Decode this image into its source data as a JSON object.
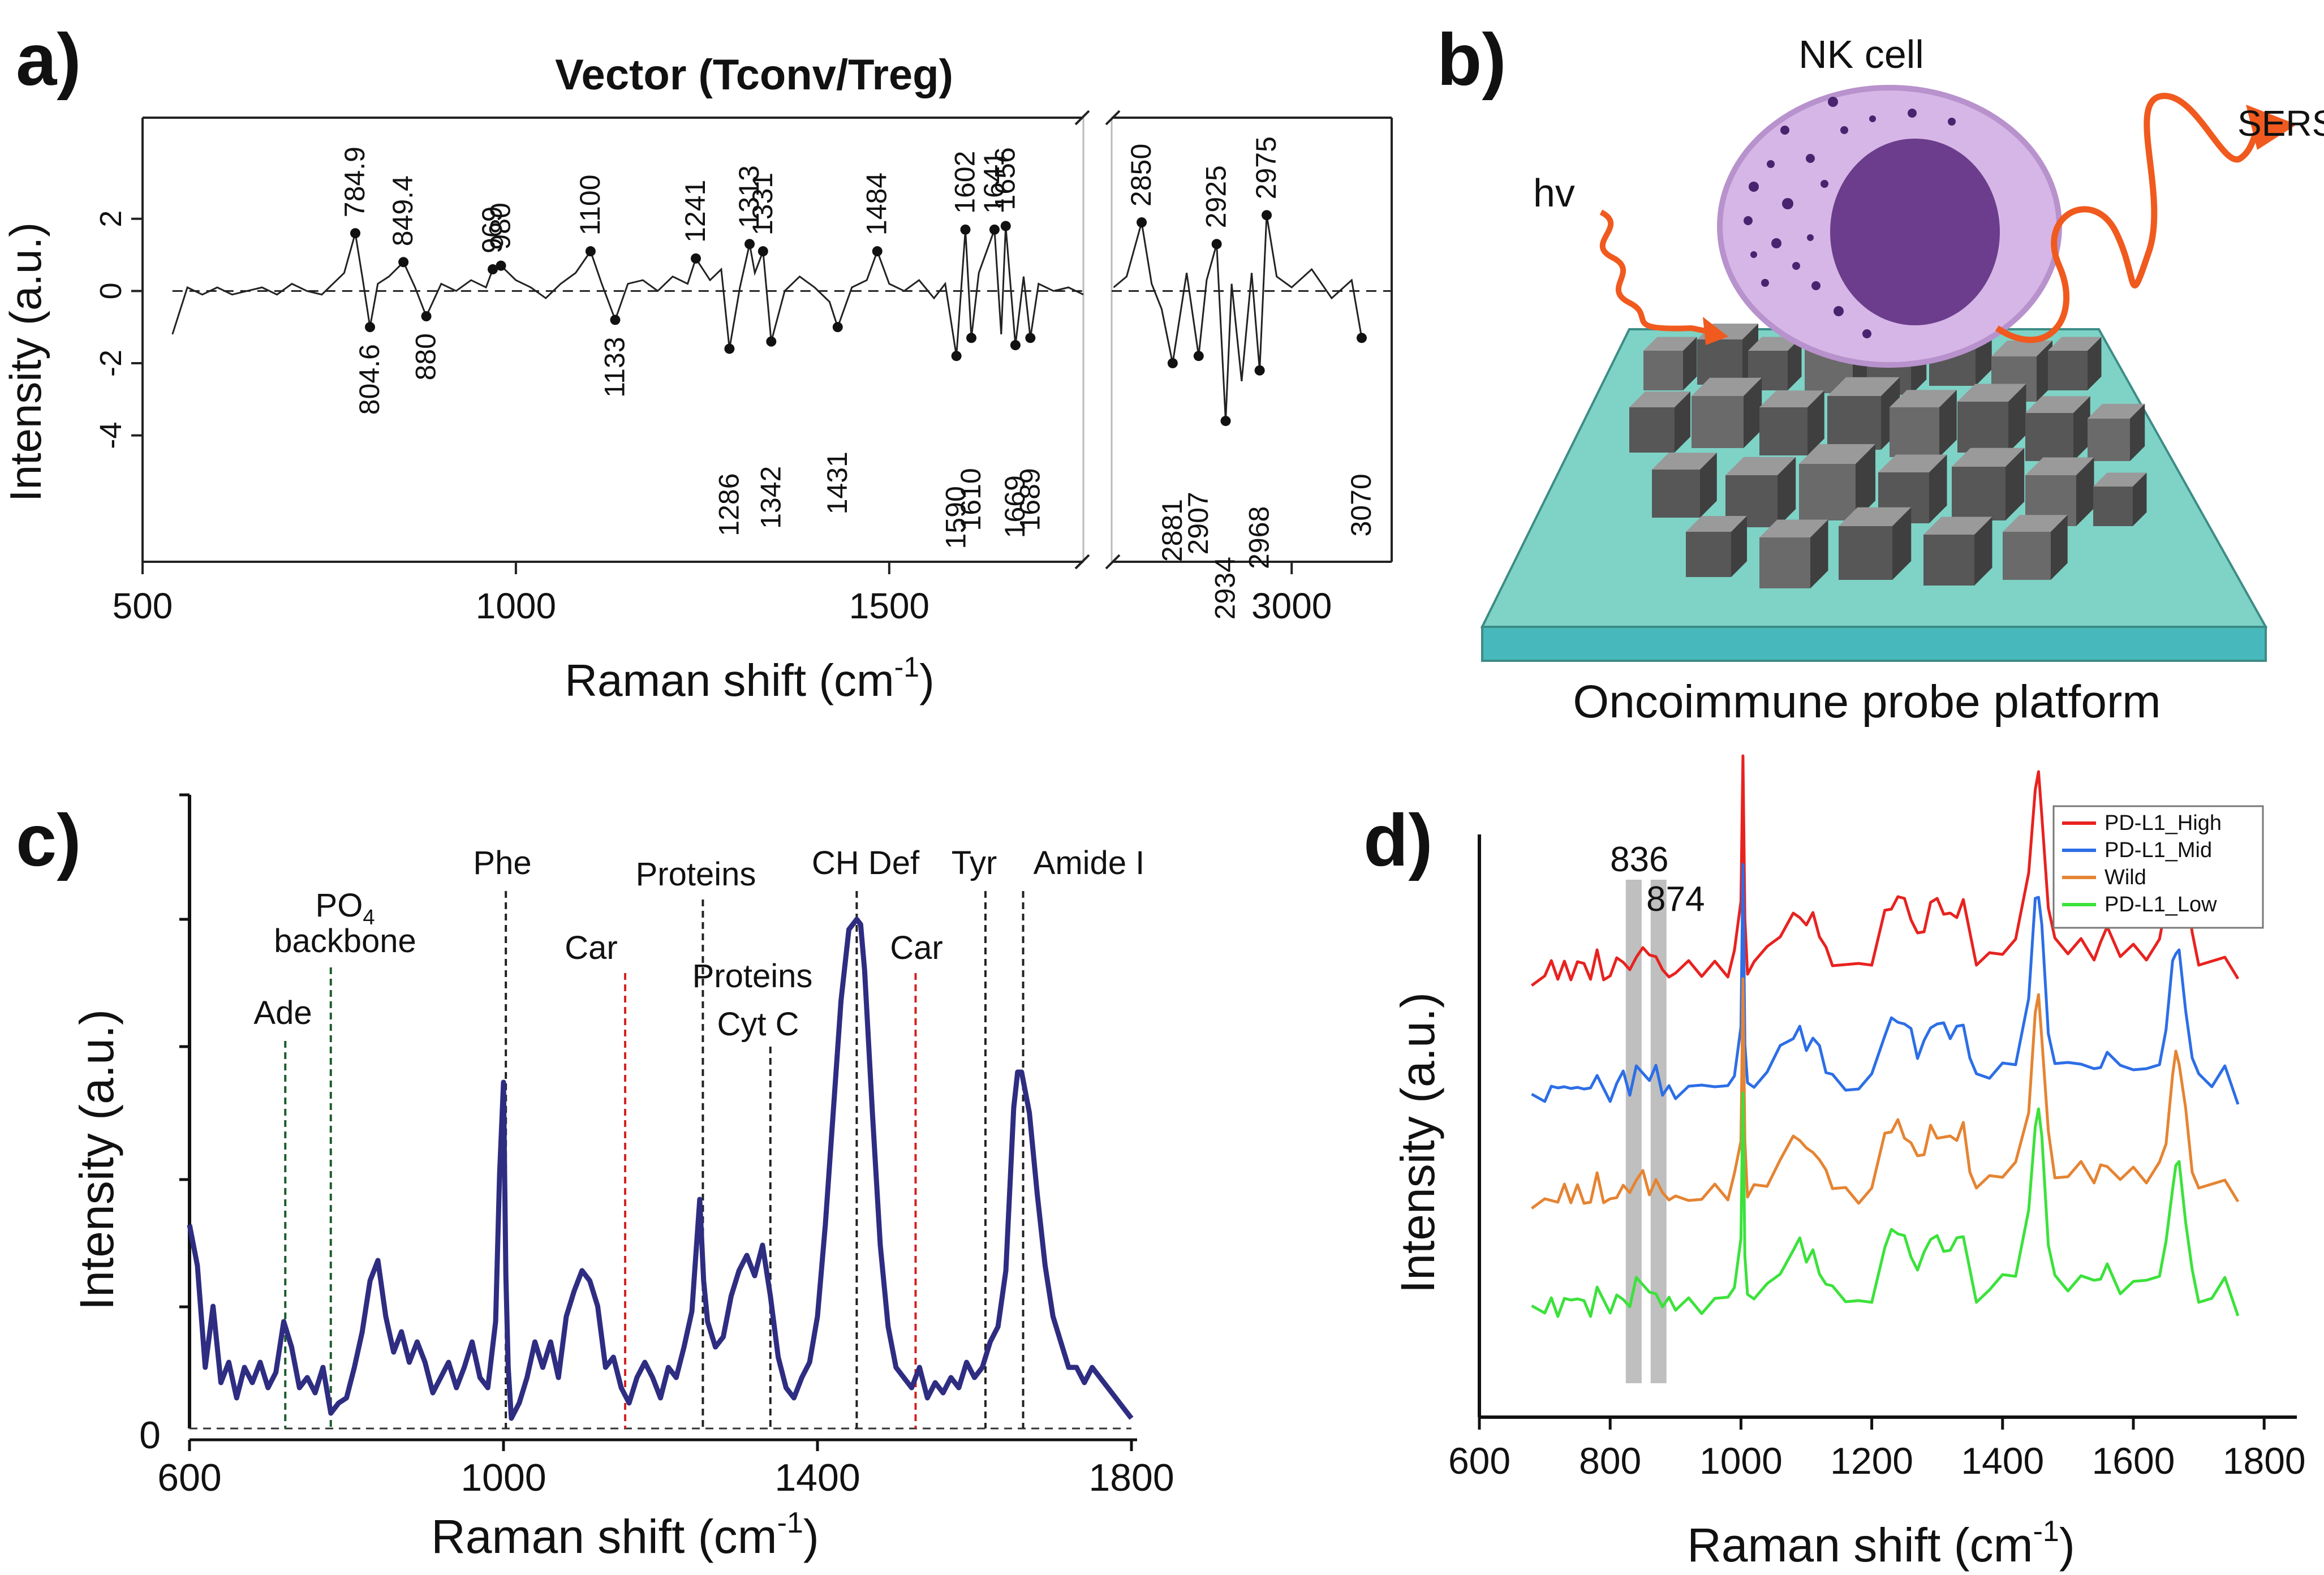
{
  "panel_labels": {
    "a": "a)",
    "b": "b)",
    "c": "c)",
    "d": "d)"
  },
  "chart_data": [
    {
      "id": "a",
      "type": "line",
      "title": "Vector (Tconv/Treg)",
      "xlabel_main": "Raman shift (cm",
      "xlabel_sup": "-1",
      "xlabel_end": ")",
      "ylabel": "Intensity (a.u.)",
      "x_broken_axis": true,
      "segments": [
        {
          "xlim": [
            500,
            1760
          ],
          "xticks": [
            500,
            1000,
            1500
          ]
        },
        {
          "xlim": [
            2820,
            3100
          ],
          "xticks": [
            3000
          ]
        }
      ],
      "ylim": [
        -7.5,
        4.8
      ],
      "yticks": [
        2,
        0,
        -2,
        -4
      ],
      "zero_line": "dashed",
      "series": [
        {
          "name": "Vector (Tconv/Treg)",
          "x": [
            540,
            560,
            580,
            600,
            620,
            640,
            660,
            680,
            700,
            720,
            740,
            760,
            770,
            784.9,
            795,
            804.6,
            815,
            830,
            849.4,
            865,
            880,
            900,
            920,
            940,
            960,
            969,
            980,
            1000,
            1020,
            1040,
            1060,
            1080,
            1100,
            1115,
            1133,
            1150,
            1170,
            1190,
            1210,
            1230,
            1241,
            1260,
            1275,
            1286,
            1300,
            1313,
            1320,
            1331,
            1342,
            1360,
            1380,
            1400,
            1420,
            1431,
            1450,
            1470,
            1484,
            1500,
            1520,
            1540,
            1560,
            1575,
            1590,
            1602,
            1610,
            1620,
            1641,
            1650,
            1656,
            1669,
            1680,
            1689,
            1700,
            1720,
            1740,
            1760
          ],
          "y": [
            -1.2,
            0.1,
            -0.1,
            0.1,
            -0.1,
            0.0,
            0.1,
            -0.1,
            0.2,
            0.0,
            -0.1,
            0.3,
            0.5,
            1.6,
            0.3,
            -1.0,
            0.2,
            0.4,
            0.8,
            0.1,
            -0.7,
            0.2,
            0.0,
            0.3,
            0.1,
            0.6,
            0.7,
            0.3,
            0.1,
            -0.2,
            0.2,
            0.5,
            1.1,
            0.2,
            -0.8,
            0.2,
            0.3,
            0.0,
            0.4,
            0.2,
            0.9,
            0.3,
            0.6,
            -1.6,
            0.1,
            1.3,
            0.5,
            1.1,
            -1.4,
            0.0,
            0.4,
            0.1,
            -0.3,
            -1.0,
            0.1,
            0.3,
            1.1,
            0.2,
            0.0,
            0.3,
            -0.2,
            0.2,
            -1.8,
            1.7,
            -1.3,
            0.5,
            1.7,
            -1.2,
            1.8,
            -1.5,
            0.4,
            -1.3,
            0.2,
            0.0,
            0.1,
            -0.1
          ],
          "x2": [
            2822,
            2835,
            2850,
            2860,
            2870,
            2881,
            2895,
            2907,
            2915,
            2925,
            2934,
            2940,
            2950,
            2960,
            2968,
            2975,
            2985,
            3000,
            3020,
            3040,
            3060,
            3070
          ],
          "y2": [
            0.1,
            0.4,
            1.9,
            0.2,
            -0.5,
            -2.0,
            0.5,
            -1.8,
            0.3,
            1.3,
            -3.6,
            0.2,
            -2.5,
            0.5,
            -2.2,
            2.1,
            0.4,
            0.1,
            0.6,
            -0.2,
            0.3,
            -1.3
          ]
        }
      ],
      "peak_labels_above": [
        "784.9",
        "849.4",
        "969",
        "980",
        "1100",
        "1241",
        "1313",
        "1331",
        "1484",
        "1602",
        "1641",
        "1656",
        "2850",
        "2925",
        "2975"
      ],
      "peak_labels_below": [
        "804.6",
        "880",
        "1133",
        "1286",
        "1342",
        "1431",
        "1590",
        "1610",
        "1669",
        "1689",
        "2881",
        "2907",
        "2934",
        "2968",
        "3070"
      ]
    },
    {
      "id": "c",
      "type": "line",
      "xlabel_main": "Raman shift (cm",
      "xlabel_sup": "-1",
      "xlabel_end": ")",
      "ylabel": "Intensity (a.u.)",
      "xlim": [
        600,
        1800
      ],
      "xticks": [
        600,
        1000,
        1400,
        1800
      ],
      "ylim": [
        0,
        10
      ],
      "y_zero_label": "0",
      "series": [
        {
          "name": "spectrum",
          "color": "#2e2d82",
          "x": [
            600,
            610,
            620,
            630,
            640,
            650,
            660,
            670,
            680,
            690,
            700,
            710,
            720,
            730,
            740,
            750,
            760,
            770,
            780,
            790,
            800,
            810,
            820,
            830,
            840,
            850,
            860,
            870,
            880,
            890,
            900,
            910,
            920,
            930,
            940,
            950,
            960,
            970,
            980,
            990,
            995,
            1000,
            1003,
            1006,
            1010,
            1020,
            1030,
            1040,
            1050,
            1060,
            1070,
            1080,
            1090,
            1100,
            1110,
            1120,
            1130,
            1140,
            1150,
            1160,
            1170,
            1180,
            1190,
            1200,
            1210,
            1220,
            1230,
            1240,
            1250,
            1255,
            1260,
            1270,
            1280,
            1290,
            1300,
            1310,
            1320,
            1330,
            1340,
            1350,
            1360,
            1370,
            1380,
            1390,
            1400,
            1410,
            1420,
            1430,
            1440,
            1450,
            1455,
            1460,
            1470,
            1480,
            1490,
            1500,
            1510,
            1520,
            1530,
            1540,
            1550,
            1560,
            1570,
            1580,
            1590,
            1600,
            1610,
            1620,
            1630,
            1640,
            1650,
            1655,
            1660,
            1670,
            1680,
            1690,
            1700,
            1710,
            1720,
            1730,
            1740,
            1750,
            1760,
            1770,
            1780,
            1790,
            1800
          ],
          "y": [
            4.0,
            3.2,
            1.2,
            2.4,
            0.9,
            1.3,
            0.6,
            1.2,
            0.9,
            1.3,
            0.8,
            1.1,
            2.1,
            1.6,
            0.8,
            1.0,
            0.7,
            1.2,
            0.3,
            0.5,
            0.6,
            1.2,
            1.9,
            2.9,
            3.3,
            2.2,
            1.5,
            1.9,
            1.3,
            1.7,
            1.3,
            0.7,
            1.0,
            1.3,
            0.8,
            1.2,
            1.7,
            1.0,
            0.8,
            2.1,
            5.0,
            6.8,
            3.0,
            1.2,
            0.2,
            0.5,
            1.0,
            1.7,
            1.2,
            1.7,
            1.0,
            2.2,
            2.7,
            3.1,
            2.9,
            2.4,
            1.2,
            1.4,
            0.8,
            0.5,
            1.0,
            1.3,
            1.0,
            0.6,
            1.2,
            1.0,
            1.6,
            2.3,
            4.5,
            2.9,
            2.1,
            1.6,
            1.8,
            2.6,
            3.1,
            3.4,
            3.0,
            3.6,
            2.6,
            1.4,
            0.8,
            0.6,
            1.0,
            1.3,
            2.2,
            4.0,
            6.2,
            8.4,
            9.8,
            10.0,
            9.9,
            9.0,
            6.2,
            3.6,
            2.0,
            1.2,
            1.0,
            0.8,
            1.2,
            0.6,
            0.9,
            0.7,
            1.0,
            0.8,
            1.3,
            1.0,
            1.2,
            1.7,
            2.0,
            3.1,
            6.3,
            7.0,
            7.0,
            6.2,
            4.6,
            3.2,
            2.2,
            1.7,
            1.2,
            1.2,
            0.9,
            1.2,
            1.0,
            0.8,
            0.6,
            0.4,
            0.2
          ]
        }
      ],
      "reference_lines": [
        {
          "x": 722,
          "color": "#1d5c2c",
          "labels": [
            "Ade"
          ]
        },
        {
          "x": 780,
          "color": "#1d5c2c",
          "labels": [
            "PO",
            "backbone"
          ],
          "sub": "4"
        },
        {
          "x": 1003,
          "color": "#222222",
          "labels": [
            "Phe"
          ]
        },
        {
          "x": 1155,
          "color": "#d42020",
          "labels": [
            "Car"
          ]
        },
        {
          "x": 1254,
          "color": "#222222",
          "labels": [
            "Proteins"
          ]
        },
        {
          "x": 1340,
          "color": "#222222",
          "labels": [
            "Proteins",
            "Cyt C"
          ]
        },
        {
          "x": 1450,
          "color": "#222222",
          "labels": [
            "CH Def"
          ]
        },
        {
          "x": 1525,
          "color": "#d42020",
          "labels": [
            "Car"
          ]
        },
        {
          "x": 1614,
          "color": "#222222",
          "labels": [
            "Tyr"
          ]
        },
        {
          "x": 1662,
          "color": "#222222",
          "labels": [
            "Amide I"
          ]
        }
      ]
    },
    {
      "id": "d",
      "type": "line",
      "xlabel_main": "Raman shift (cm",
      "xlabel_sup": "-1",
      "xlabel_end": ")",
      "ylabel": "Intensity (a.u.)",
      "xlim": [
        600,
        1850
      ],
      "xticks": [
        600,
        800,
        1000,
        1200,
        1400,
        1600,
        1800
      ],
      "legend_position": "top-right",
      "highlight_bands": [
        {
          "x": 836,
          "label": "836"
        },
        {
          "x": 874,
          "label": "874"
        }
      ],
      "base_shape": {
        "x": [
          680,
          700,
          710,
          720,
          730,
          740,
          750,
          760,
          770,
          780,
          790,
          800,
          810,
          820,
          830,
          840,
          850,
          860,
          870,
          880,
          890,
          900,
          920,
          940,
          960,
          980,
          990,
          1000,
          1003,
          1006,
          1010,
          1020,
          1040,
          1060,
          1080,
          1090,
          1100,
          1110,
          1120,
          1130,
          1140,
          1160,
          1180,
          1200,
          1220,
          1230,
          1240,
          1250,
          1260,
          1270,
          1280,
          1290,
          1300,
          1310,
          1320,
          1330,
          1340,
          1350,
          1360,
          1380,
          1400,
          1420,
          1440,
          1450,
          1455,
          1460,
          1470,
          1480,
          1500,
          1520,
          1540,
          1550,
          1560,
          1580,
          1600,
          1620,
          1640,
          1650,
          1660,
          1665,
          1670,
          1680,
          1690,
          1700,
          1720,
          1740,
          1760
        ],
        "y": [
          0,
          0.1,
          0.4,
          0.1,
          0.5,
          0.2,
          0.6,
          0.3,
          0.1,
          0.9,
          0.2,
          0.1,
          0.5,
          0.7,
          0.2,
          1.0,
          1.1,
          0.6,
          0.9,
          0.2,
          0.3,
          0.2,
          0.4,
          0.2,
          0.5,
          0.3,
          1.0,
          2.5,
          8.0,
          2.0,
          0.4,
          0.6,
          0.9,
          1.6,
          2.2,
          2.4,
          1.9,
          2.1,
          1.6,
          1.0,
          0.7,
          0.5,
          0.3,
          0.6,
          2.3,
          2.7,
          2.9,
          2.6,
          2.2,
          1.5,
          1.9,
          2.7,
          2.6,
          2.4,
          2.2,
          2.4,
          2.8,
          1.4,
          0.6,
          0.8,
          1.1,
          1.4,
          3.5,
          6.8,
          7.2,
          6.0,
          2.5,
          1.2,
          1.0,
          1.3,
          0.9,
          1.3,
          1.6,
          0.9,
          1.1,
          0.9,
          1.4,
          2.4,
          4.6,
          5.2,
          5.1,
          3.3,
          1.4,
          0.6,
          0.5,
          1.0,
          0.0
        ]
      },
      "series": [
        {
          "name": "PD-L1_High",
          "color": "#e8221f",
          "offset": 3
        },
        {
          "name": "PD-L1_Mid",
          "color": "#2c6ee6",
          "offset": 2
        },
        {
          "name": "Wild",
          "color": "#e58432",
          "offset": 1
        },
        {
          "name": "PD-L1_Low",
          "color": "#3be23b",
          "offset": 0
        }
      ]
    }
  ],
  "panel_b": {
    "cell_label": "NK cell",
    "light_in_label": "hv",
    "signal_out_label": "SERS",
    "platform_label": "Oncoimmune probe platform",
    "colors": {
      "substrate_top": "#7ed3c6",
      "substrate_side": "#47b9bc",
      "cell_outer": "#d6b6e6",
      "nucleus": "#6b3d8c",
      "granules": "#4a2370",
      "arrow": "#f05a1e",
      "cube": "#5a5a5a"
    }
  }
}
